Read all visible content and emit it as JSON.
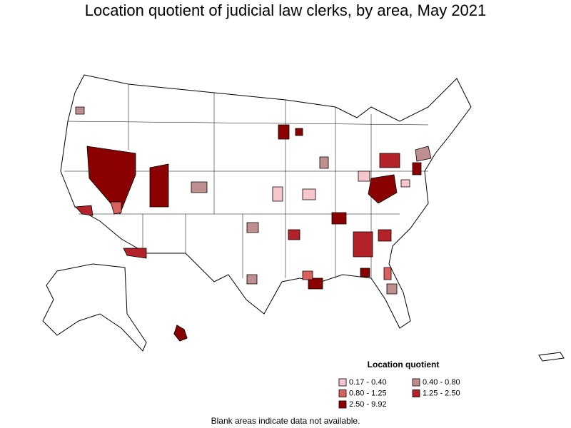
{
  "title": "Location quotient of judicial law clerks, by area, May 2021",
  "legend": {
    "title": "Location quotient",
    "items": [
      {
        "label": "0.17 - 0.40",
        "color": "#f7c5cc"
      },
      {
        "label": "0.40 - 0.80",
        "color": "#bf8f8f"
      },
      {
        "label": "0.80 - 1.25",
        "color": "#d9625f"
      },
      {
        "label": "1.25 - 2.50",
        "color": "#b22228"
      },
      {
        "label": "2.50 - 9.92",
        "color": "#8b0000"
      }
    ]
  },
  "note": "Blank areas indicate data not available."
}
